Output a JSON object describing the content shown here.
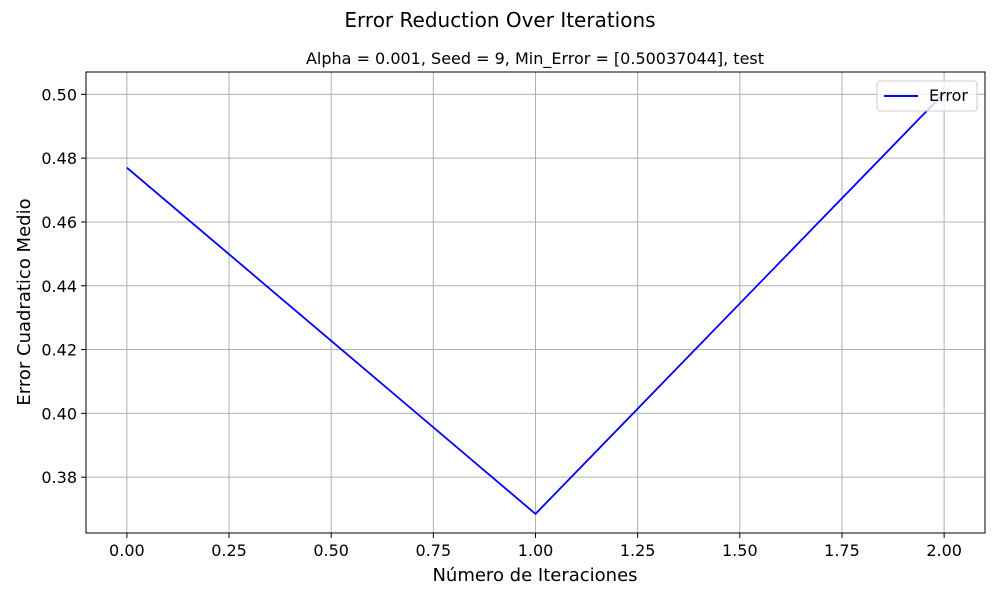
{
  "figure": {
    "suptitle": "Error Reduction Over Iterations"
  },
  "chart_data": {
    "type": "line",
    "title": "Alpha = 0.001, Seed = 9, Min_Error = [0.50037044], test",
    "xlabel": "Número de Iteraciones",
    "ylabel": "Error Cuadratico Medio",
    "xlim": [
      -0.1,
      2.1
    ],
    "ylim": [
      0.3625,
      0.507
    ],
    "xticks": [
      0.0,
      0.25,
      0.5,
      0.75,
      1.0,
      1.25,
      1.5,
      1.75,
      2.0
    ],
    "xtick_labels": [
      "0.00",
      "0.25",
      "0.50",
      "0.75",
      "1.00",
      "1.25",
      "1.50",
      "1.75",
      "2.00"
    ],
    "yticks": [
      0.38,
      0.4,
      0.42,
      0.44,
      0.46,
      0.48,
      0.5
    ],
    "ytick_labels": [
      "0.38",
      "0.40",
      "0.42",
      "0.44",
      "0.46",
      "0.48",
      "0.50"
    ],
    "grid": true,
    "legend_position": "upper right",
    "series": [
      {
        "name": "Error",
        "color": "#0000ff",
        "x": [
          0,
          1,
          2
        ],
        "y": [
          0.477,
          0.3685,
          0.5004
        ]
      }
    ]
  }
}
